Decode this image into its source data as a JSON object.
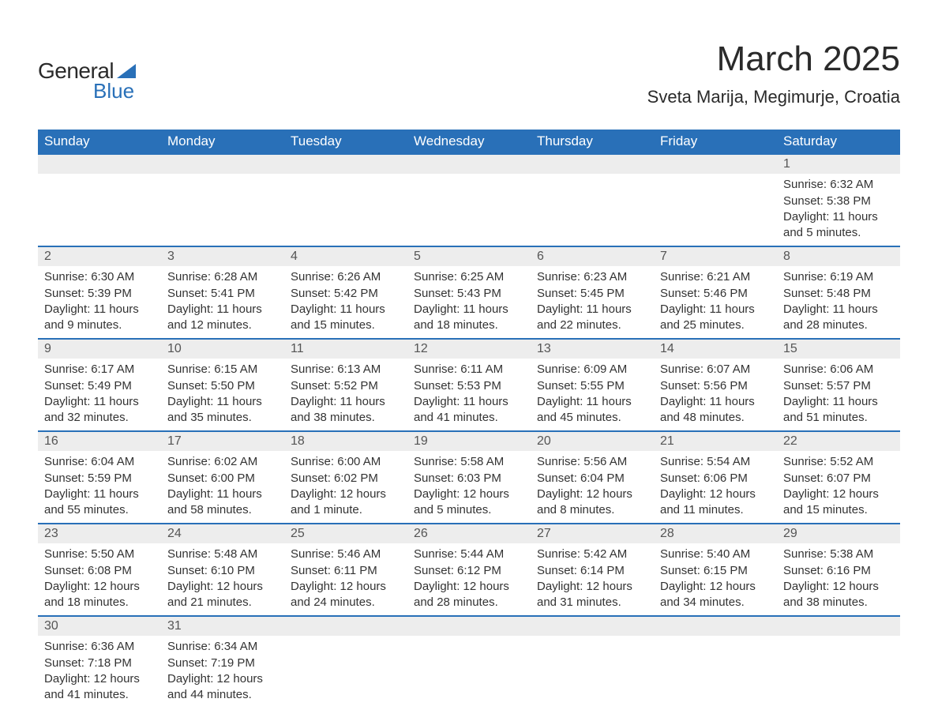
{
  "logo": {
    "text1": "General",
    "text2": "Blue"
  },
  "title": "March 2025",
  "location": "Sveta Marija, Megimurje, Croatia",
  "colors": {
    "header_bg": "#2970b8",
    "header_text": "#ffffff",
    "daynum_bg": "#ededed",
    "daynum_text": "#555555",
    "body_text": "#333333",
    "row_border": "#2970b8",
    "page_bg": "#ffffff",
    "logo_accent": "#2970b8"
  },
  "typography": {
    "title_fontsize": 44,
    "location_fontsize": 22,
    "header_fontsize": 17,
    "daynum_fontsize": 16,
    "daytext_fontsize": 15
  },
  "dayNames": [
    "Sunday",
    "Monday",
    "Tuesday",
    "Wednesday",
    "Thursday",
    "Friday",
    "Saturday"
  ],
  "labels": {
    "sunrise": "Sunrise:",
    "sunset": "Sunset:",
    "daylight": "Daylight:"
  },
  "weeks": [
    [
      {
        "n": "",
        "empty": true
      },
      {
        "n": "",
        "empty": true
      },
      {
        "n": "",
        "empty": true
      },
      {
        "n": "",
        "empty": true
      },
      {
        "n": "",
        "empty": true
      },
      {
        "n": "",
        "empty": true
      },
      {
        "n": "1",
        "sunrise": "6:32 AM",
        "sunset": "5:38 PM",
        "daylight": "11 hours and 5 minutes."
      }
    ],
    [
      {
        "n": "2",
        "sunrise": "6:30 AM",
        "sunset": "5:39 PM",
        "daylight": "11 hours and 9 minutes."
      },
      {
        "n": "3",
        "sunrise": "6:28 AM",
        "sunset": "5:41 PM",
        "daylight": "11 hours and 12 minutes."
      },
      {
        "n": "4",
        "sunrise": "6:26 AM",
        "sunset": "5:42 PM",
        "daylight": "11 hours and 15 minutes."
      },
      {
        "n": "5",
        "sunrise": "6:25 AM",
        "sunset": "5:43 PM",
        "daylight": "11 hours and 18 minutes."
      },
      {
        "n": "6",
        "sunrise": "6:23 AM",
        "sunset": "5:45 PM",
        "daylight": "11 hours and 22 minutes."
      },
      {
        "n": "7",
        "sunrise": "6:21 AM",
        "sunset": "5:46 PM",
        "daylight": "11 hours and 25 minutes."
      },
      {
        "n": "8",
        "sunrise": "6:19 AM",
        "sunset": "5:48 PM",
        "daylight": "11 hours and 28 minutes."
      }
    ],
    [
      {
        "n": "9",
        "sunrise": "6:17 AM",
        "sunset": "5:49 PM",
        "daylight": "11 hours and 32 minutes."
      },
      {
        "n": "10",
        "sunrise": "6:15 AM",
        "sunset": "5:50 PM",
        "daylight": "11 hours and 35 minutes."
      },
      {
        "n": "11",
        "sunrise": "6:13 AM",
        "sunset": "5:52 PM",
        "daylight": "11 hours and 38 minutes."
      },
      {
        "n": "12",
        "sunrise": "6:11 AM",
        "sunset": "5:53 PM",
        "daylight": "11 hours and 41 minutes."
      },
      {
        "n": "13",
        "sunrise": "6:09 AM",
        "sunset": "5:55 PM",
        "daylight": "11 hours and 45 minutes."
      },
      {
        "n": "14",
        "sunrise": "6:07 AM",
        "sunset": "5:56 PM",
        "daylight": "11 hours and 48 minutes."
      },
      {
        "n": "15",
        "sunrise": "6:06 AM",
        "sunset": "5:57 PM",
        "daylight": "11 hours and 51 minutes."
      }
    ],
    [
      {
        "n": "16",
        "sunrise": "6:04 AM",
        "sunset": "5:59 PM",
        "daylight": "11 hours and 55 minutes."
      },
      {
        "n": "17",
        "sunrise": "6:02 AM",
        "sunset": "6:00 PM",
        "daylight": "11 hours and 58 minutes."
      },
      {
        "n": "18",
        "sunrise": "6:00 AM",
        "sunset": "6:02 PM",
        "daylight": "12 hours and 1 minute."
      },
      {
        "n": "19",
        "sunrise": "5:58 AM",
        "sunset": "6:03 PM",
        "daylight": "12 hours and 5 minutes."
      },
      {
        "n": "20",
        "sunrise": "5:56 AM",
        "sunset": "6:04 PM",
        "daylight": "12 hours and 8 minutes."
      },
      {
        "n": "21",
        "sunrise": "5:54 AM",
        "sunset": "6:06 PM",
        "daylight": "12 hours and 11 minutes."
      },
      {
        "n": "22",
        "sunrise": "5:52 AM",
        "sunset": "6:07 PM",
        "daylight": "12 hours and 15 minutes."
      }
    ],
    [
      {
        "n": "23",
        "sunrise": "5:50 AM",
        "sunset": "6:08 PM",
        "daylight": "12 hours and 18 minutes."
      },
      {
        "n": "24",
        "sunrise": "5:48 AM",
        "sunset": "6:10 PM",
        "daylight": "12 hours and 21 minutes."
      },
      {
        "n": "25",
        "sunrise": "5:46 AM",
        "sunset": "6:11 PM",
        "daylight": "12 hours and 24 minutes."
      },
      {
        "n": "26",
        "sunrise": "5:44 AM",
        "sunset": "6:12 PM",
        "daylight": "12 hours and 28 minutes."
      },
      {
        "n": "27",
        "sunrise": "5:42 AM",
        "sunset": "6:14 PM",
        "daylight": "12 hours and 31 minutes."
      },
      {
        "n": "28",
        "sunrise": "5:40 AM",
        "sunset": "6:15 PM",
        "daylight": "12 hours and 34 minutes."
      },
      {
        "n": "29",
        "sunrise": "5:38 AM",
        "sunset": "6:16 PM",
        "daylight": "12 hours and 38 minutes."
      }
    ],
    [
      {
        "n": "30",
        "sunrise": "6:36 AM",
        "sunset": "7:18 PM",
        "daylight": "12 hours and 41 minutes."
      },
      {
        "n": "31",
        "sunrise": "6:34 AM",
        "sunset": "7:19 PM",
        "daylight": "12 hours and 44 minutes."
      },
      {
        "n": "",
        "empty": true
      },
      {
        "n": "",
        "empty": true
      },
      {
        "n": "",
        "empty": true
      },
      {
        "n": "",
        "empty": true
      },
      {
        "n": "",
        "empty": true
      }
    ]
  ]
}
